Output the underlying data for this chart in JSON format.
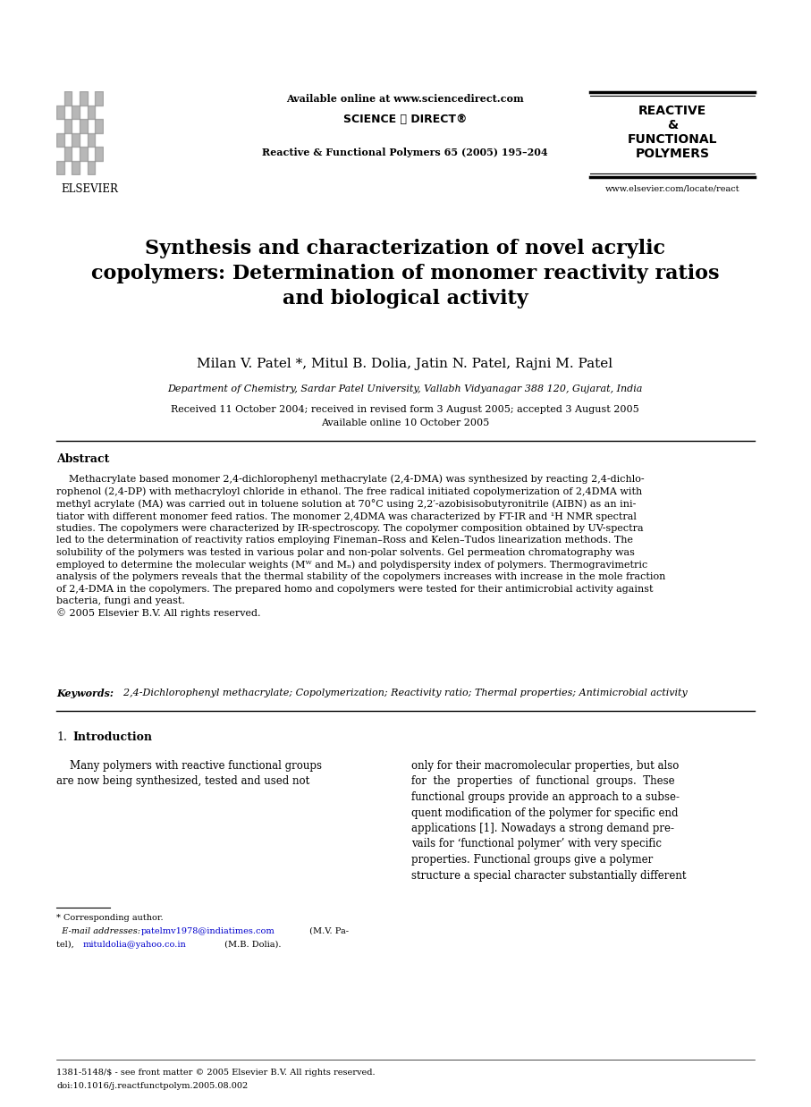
{
  "page_width": 9.07,
  "page_height": 12.38,
  "bg_color": "#ffffff",
  "header_available": "Available online at www.sciencedirect.com",
  "header_scidir": "SCIENCE é DIRECT®",
  "header_journal_ref": "Reactive & Functional Polymers 65 (2005) 195–204",
  "journal_name": [
    "REACTIVE",
    "&",
    "FUNCTIONAL",
    "POLYMERS"
  ],
  "journal_url": "www.elsevier.com/locate/react",
  "elsevier_text": "ELSEVIER",
  "title": "Synthesis and characterization of novel acrylic\ncopolymers: Determination of monomer reactivity ratios\nand biological activity",
  "authors": "Milan V. Patel *, Mitul B. Dolia, Jatin N. Patel, Rajni M. Patel",
  "affiliation": "Department of Chemistry, Sardar Patel University, Vallabh Vidyanagar 388 120, Gujarat, India",
  "received": "Received 11 October 2004; received in revised form 3 August 2005; accepted 3 August 2005",
  "available_online": "Available online 10 October 2005",
  "abstract_label": "Abstract",
  "abstract_body": "    Methacrylate based monomer 2,4-dichlorophenyl methacrylate (2,4-DMA) was synthesized by reacting 2,4-dichlo-\nrophenol (2,4-DP) with methacryloyl chloride in ethanol. The free radical initiated copolymerization of 2,4DMA with\nmethyl acrylate (MA) was carried out in toluene solution at 70°C using 2,2′-azobisisobutyronitrile (AIBN) as an ini-\ntiator with different monomer feed ratios. The monomer 2,4DMA was characterized by FT-IR and ¹H NMR spectral\nstudies. The copolymers were characterized by IR-spectroscopy. The copolymer composition obtained by UV-spectra\nled to the determination of reactivity ratios employing Fineman–Ross and Kelen–Tudos linearization methods. The\nsolubility of the polymers was tested in various polar and non-polar solvents. Gel permeation chromatography was\nemployed to determine the molecular weights (Mᵂ and Mₙ) and polydispersity index of polymers. Thermogravimetric\nanalysis of the polymers reveals that the thermal stability of the copolymers increases with increase in the mole fraction\nof 2,4-DMA in the copolymers. The prepared homo and copolymers were tested for their antimicrobial activity against\nbacteria, fungi and yeast.\n© 2005 Elsevier B.V. All rights reserved.",
  "keywords_label": "Keywords:",
  "keywords_text": "  2,4-Dichlorophenyl methacrylate; Copolymerization; Reactivity ratio; Thermal properties; Antimicrobial activity",
  "intro_number": "1.",
  "intro_title": "Introduction",
  "intro_col1": "    Many polymers with reactive functional groups\nare now being synthesized, tested and used not",
  "intro_col2": "only for their macromolecular properties, but also\nfor  the  properties  of  functional  groups.  These\nfunctional groups provide an approach to a subse-\nquent modification of the polymer for specific end\napplications [1]. Nowadays a strong demand pre-\nvails for ‘functional polymer’ with very specific\nproperties. Functional groups give a polymer\nstructure a special character substantially different",
  "footnote_star": "* Corresponding author.",
  "footnote_email_label": "  E-mail addresses: ",
  "footnote_email1": "patelmv1978@indiatimes.com",
  "footnote_email1_suffix": " (M.V. Pa-\ntel), ",
  "footnote_email2": "mituldolia@yahoo.co.in",
  "footnote_email2_suffix": " (M.B. Dolia).",
  "footer1": "1381-5148/$ - see front matter © 2005 Elsevier B.V. All rights reserved.",
  "footer2": "doi:10.1016/j.reactfunctpolym.2005.08.002"
}
